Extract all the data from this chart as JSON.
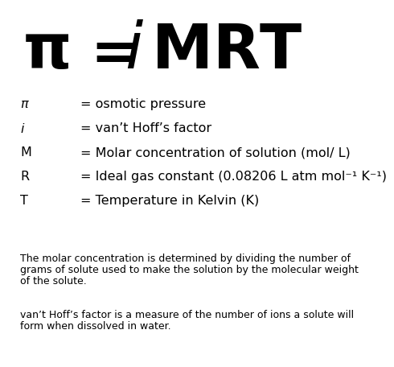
{
  "bg_color": "#ffffff",
  "sym_pi": "π",
  "sym_i": "i",
  "defs": [
    {
      "sym": "π",
      "style": "math_pi",
      "defn": "= osmotic pressure"
    },
    {
      "sym": "i",
      "style": "italic",
      "defn": "= van’t Hoff’s factor"
    },
    {
      "sym": "M",
      "style": "normal_bold",
      "defn": "= Molar concentration of solution (mol/ L)"
    },
    {
      "sym": "R",
      "style": "normal_bold",
      "defn": "= Ideal gas constant (0.08206 L atm mol⁻¹ K⁻¹)"
    },
    {
      "sym": "T",
      "style": "normal_bold",
      "defn": "= Temperature in Kelvin (K)"
    }
  ],
  "note1_lines": [
    "The molar concentration is determined by dividing the number of",
    "grams of solute used to make the solution by the molecular weight",
    "of the solute."
  ],
  "note2_lines": [
    "van’t Hoff’s factor is a measure of the number of ions a solute will",
    "form when dissolved in water."
  ]
}
